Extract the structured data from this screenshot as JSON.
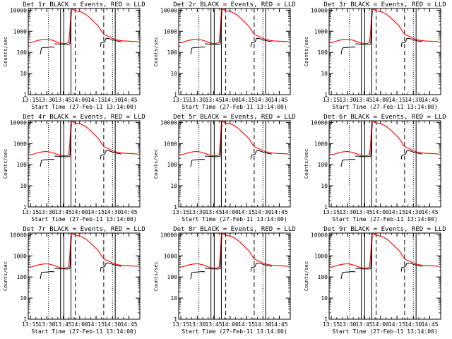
{
  "chart_data": {
    "type": "line",
    "xlabel": "Start Time (27-Feb-11 13:14:00)",
    "ylabel": "Counts/sec",
    "x_ticks": [
      "13:15",
      "13:30",
      "13:45",
      "14:00",
      "14:15",
      "14:30",
      "14:45"
    ],
    "x_tick_minutes": [
      15,
      30,
      45,
      60,
      75,
      90,
      105
    ],
    "xlim_minutes": [
      13,
      115
    ],
    "y_scale": "log",
    "y_ticks": [
      "1",
      "10",
      "100",
      "1000",
      "10000"
    ],
    "ylim": [
      1,
      12000
    ],
    "vlines": {
      "dotted": [
        31.5,
        90
      ],
      "solid": [
        42.5,
        45.5,
        52,
        92.5
      ],
      "dashed": [
        56,
        82
      ]
    },
    "colors": {
      "events": "#000000",
      "lld": "#ff0000"
    },
    "panels": [
      {
        "title": "Det 1r BLACK = Events, RED = LLD"
      },
      {
        "title": "Det 2r BLACK = Events, RED = LLD"
      },
      {
        "title": "Det 3r BLACK = Events, RED = LLD"
      },
      {
        "title": "Det 4r BLACK = Events, RED = LLD"
      },
      {
        "title": "Det 5r BLACK = Events, RED = LLD"
      },
      {
        "title": "Det 6r BLACK = Events, RED = LLD"
      },
      {
        "title": "Det 7r BLACK = Events, RED = LLD"
      },
      {
        "title": "Det 8r BLACK = Events, RED = LLD"
      },
      {
        "title": "Det 9r BLACK = Events, RED = LLD"
      }
    ],
    "series": [
      {
        "name": "LLD",
        "x": [
          14,
          18,
          22,
          26,
          30,
          34,
          38,
          40,
          42,
          44,
          46,
          48,
          50,
          51,
          52,
          53,
          54,
          55,
          56,
          58,
          60,
          62,
          64,
          66,
          68,
          70,
          72,
          74,
          76,
          78,
          80,
          82,
          84,
          86,
          88,
          90,
          92,
          95,
          100,
          105,
          110,
          113
        ],
        "y": [
          280,
          320,
          370,
          410,
          420,
          390,
          330,
          300,
          280,
          265,
          265,
          270,
          300,
          1100,
          9000,
          11000,
          10500,
          9800,
          9500,
          9000,
          8500,
          8000,
          7000,
          6000,
          5000,
          4000,
          3200,
          2500,
          2000,
          1500,
          1000,
          720,
          640,
          580,
          520,
          460,
          420,
          380,
          350,
          340,
          330,
          320
        ]
      },
      {
        "name": "Events",
        "segments": [
          {
            "x": [
              24,
              24.5,
              25,
              26,
              28,
              30,
              32,
              34,
              36,
              37
            ],
            "y": [
              80,
              110,
              160,
              165,
              170,
              170,
              175,
              180,
              178,
              175
            ]
          },
          {
            "x": [
              37,
              38,
              40,
              42,
              44,
              46,
              48,
              50,
              51,
              51.5,
              52,
              52.5
            ],
            "y": [
              250,
              255,
              250,
              245,
              240,
              240,
              238,
              240,
              250,
              600,
              3500,
              9000
            ]
          },
          {
            "x": [
              79,
              79.5,
              80,
              81,
              82,
              83,
              84,
              86,
              88,
              90,
              92,
              95,
              98
            ],
            "y": [
              180,
              280,
              285,
              290,
              300,
              320,
              450,
              460,
              430,
              400,
              370,
              340,
              320
            ]
          }
        ]
      }
    ]
  }
}
